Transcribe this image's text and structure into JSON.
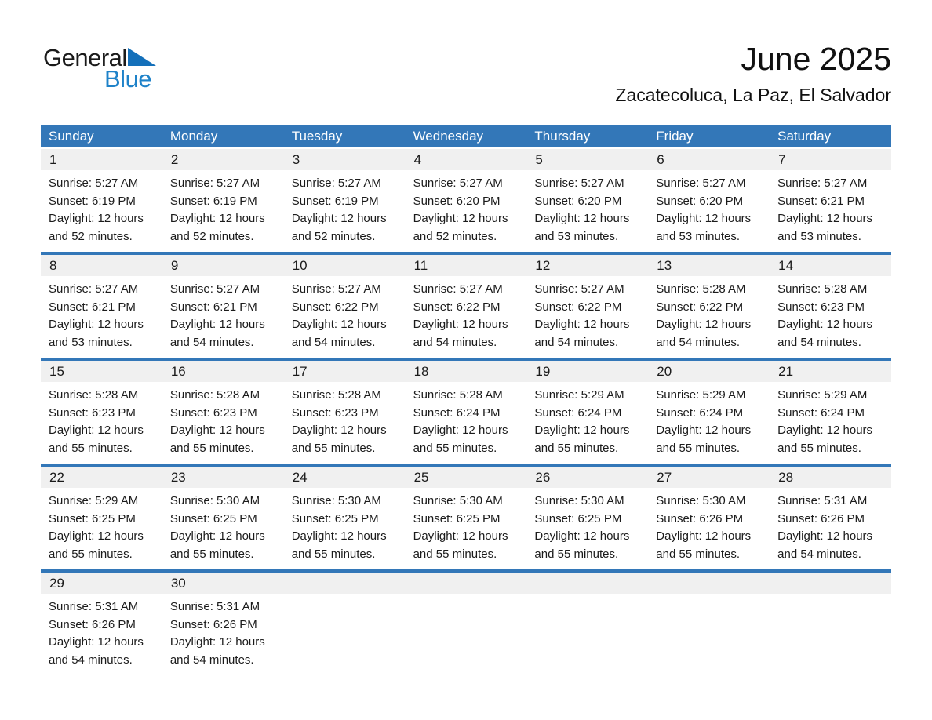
{
  "logo": {
    "general": "General",
    "blue": "Blue"
  },
  "header": {
    "title": "June 2025",
    "subtitle": "Zacatecoluca, La Paz, El Salvador"
  },
  "colors": {
    "header_bg": "#3377b8",
    "week_separator": "#3377b8",
    "day_band_bg": "#f0f0f0",
    "logo_text_blue": "#1e82c9",
    "logo_triangle_blue": "#1470ba",
    "text": "#1b1b1b"
  },
  "weekdays": [
    "Sunday",
    "Monday",
    "Tuesday",
    "Wednesday",
    "Thursday",
    "Friday",
    "Saturday"
  ],
  "calendar": {
    "weeks": [
      [
        {
          "day": "1",
          "sunrise": "Sunrise: 5:27 AM",
          "sunset": "Sunset: 6:19 PM",
          "daylight": "Daylight: 12 hours and 52 minutes."
        },
        {
          "day": "2",
          "sunrise": "Sunrise: 5:27 AM",
          "sunset": "Sunset: 6:19 PM",
          "daylight": "Daylight: 12 hours and 52 minutes."
        },
        {
          "day": "3",
          "sunrise": "Sunrise: 5:27 AM",
          "sunset": "Sunset: 6:19 PM",
          "daylight": "Daylight: 12 hours and 52 minutes."
        },
        {
          "day": "4",
          "sunrise": "Sunrise: 5:27 AM",
          "sunset": "Sunset: 6:20 PM",
          "daylight": "Daylight: 12 hours and 52 minutes."
        },
        {
          "day": "5",
          "sunrise": "Sunrise: 5:27 AM",
          "sunset": "Sunset: 6:20 PM",
          "daylight": "Daylight: 12 hours and 53 minutes."
        },
        {
          "day": "6",
          "sunrise": "Sunrise: 5:27 AM",
          "sunset": "Sunset: 6:20 PM",
          "daylight": "Daylight: 12 hours and 53 minutes."
        },
        {
          "day": "7",
          "sunrise": "Sunrise: 5:27 AM",
          "sunset": "Sunset: 6:21 PM",
          "daylight": "Daylight: 12 hours and 53 minutes."
        }
      ],
      [
        {
          "day": "8",
          "sunrise": "Sunrise: 5:27 AM",
          "sunset": "Sunset: 6:21 PM",
          "daylight": "Daylight: 12 hours and 53 minutes."
        },
        {
          "day": "9",
          "sunrise": "Sunrise: 5:27 AM",
          "sunset": "Sunset: 6:21 PM",
          "daylight": "Daylight: 12 hours and 54 minutes."
        },
        {
          "day": "10",
          "sunrise": "Sunrise: 5:27 AM",
          "sunset": "Sunset: 6:22 PM",
          "daylight": "Daylight: 12 hours and 54 minutes."
        },
        {
          "day": "11",
          "sunrise": "Sunrise: 5:27 AM",
          "sunset": "Sunset: 6:22 PM",
          "daylight": "Daylight: 12 hours and 54 minutes."
        },
        {
          "day": "12",
          "sunrise": "Sunrise: 5:27 AM",
          "sunset": "Sunset: 6:22 PM",
          "daylight": "Daylight: 12 hours and 54 minutes."
        },
        {
          "day": "13",
          "sunrise": "Sunrise: 5:28 AM",
          "sunset": "Sunset: 6:22 PM",
          "daylight": "Daylight: 12 hours and 54 minutes."
        },
        {
          "day": "14",
          "sunrise": "Sunrise: 5:28 AM",
          "sunset": "Sunset: 6:23 PM",
          "daylight": "Daylight: 12 hours and 54 minutes."
        }
      ],
      [
        {
          "day": "15",
          "sunrise": "Sunrise: 5:28 AM",
          "sunset": "Sunset: 6:23 PM",
          "daylight": "Daylight: 12 hours and 55 minutes."
        },
        {
          "day": "16",
          "sunrise": "Sunrise: 5:28 AM",
          "sunset": "Sunset: 6:23 PM",
          "daylight": "Daylight: 12 hours and 55 minutes."
        },
        {
          "day": "17",
          "sunrise": "Sunrise: 5:28 AM",
          "sunset": "Sunset: 6:23 PM",
          "daylight": "Daylight: 12 hours and 55 minutes."
        },
        {
          "day": "18",
          "sunrise": "Sunrise: 5:28 AM",
          "sunset": "Sunset: 6:24 PM",
          "daylight": "Daylight: 12 hours and 55 minutes."
        },
        {
          "day": "19",
          "sunrise": "Sunrise: 5:29 AM",
          "sunset": "Sunset: 6:24 PM",
          "daylight": "Daylight: 12 hours and 55 minutes."
        },
        {
          "day": "20",
          "sunrise": "Sunrise: 5:29 AM",
          "sunset": "Sunset: 6:24 PM",
          "daylight": "Daylight: 12 hours and 55 minutes."
        },
        {
          "day": "21",
          "sunrise": "Sunrise: 5:29 AM",
          "sunset": "Sunset: 6:24 PM",
          "daylight": "Daylight: 12 hours and 55 minutes."
        }
      ],
      [
        {
          "day": "22",
          "sunrise": "Sunrise: 5:29 AM",
          "sunset": "Sunset: 6:25 PM",
          "daylight": "Daylight: 12 hours and 55 minutes."
        },
        {
          "day": "23",
          "sunrise": "Sunrise: 5:30 AM",
          "sunset": "Sunset: 6:25 PM",
          "daylight": "Daylight: 12 hours and 55 minutes."
        },
        {
          "day": "24",
          "sunrise": "Sunrise: 5:30 AM",
          "sunset": "Sunset: 6:25 PM",
          "daylight": "Daylight: 12 hours and 55 minutes."
        },
        {
          "day": "25",
          "sunrise": "Sunrise: 5:30 AM",
          "sunset": "Sunset: 6:25 PM",
          "daylight": "Daylight: 12 hours and 55 minutes."
        },
        {
          "day": "26",
          "sunrise": "Sunrise: 5:30 AM",
          "sunset": "Sunset: 6:25 PM",
          "daylight": "Daylight: 12 hours and 55 minutes."
        },
        {
          "day": "27",
          "sunrise": "Sunrise: 5:30 AM",
          "sunset": "Sunset: 6:26 PM",
          "daylight": "Daylight: 12 hours and 55 minutes."
        },
        {
          "day": "28",
          "sunrise": "Sunrise: 5:31 AM",
          "sunset": "Sunset: 6:26 PM",
          "daylight": "Daylight: 12 hours and 54 minutes."
        }
      ],
      [
        {
          "day": "29",
          "sunrise": "Sunrise: 5:31 AM",
          "sunset": "Sunset: 6:26 PM",
          "daylight": "Daylight: 12 hours and 54 minutes."
        },
        {
          "day": "30",
          "sunrise": "Sunrise: 5:31 AM",
          "sunset": "Sunset: 6:26 PM",
          "daylight": "Daylight: 12 hours and 54 minutes."
        },
        null,
        null,
        null,
        null,
        null
      ]
    ]
  }
}
